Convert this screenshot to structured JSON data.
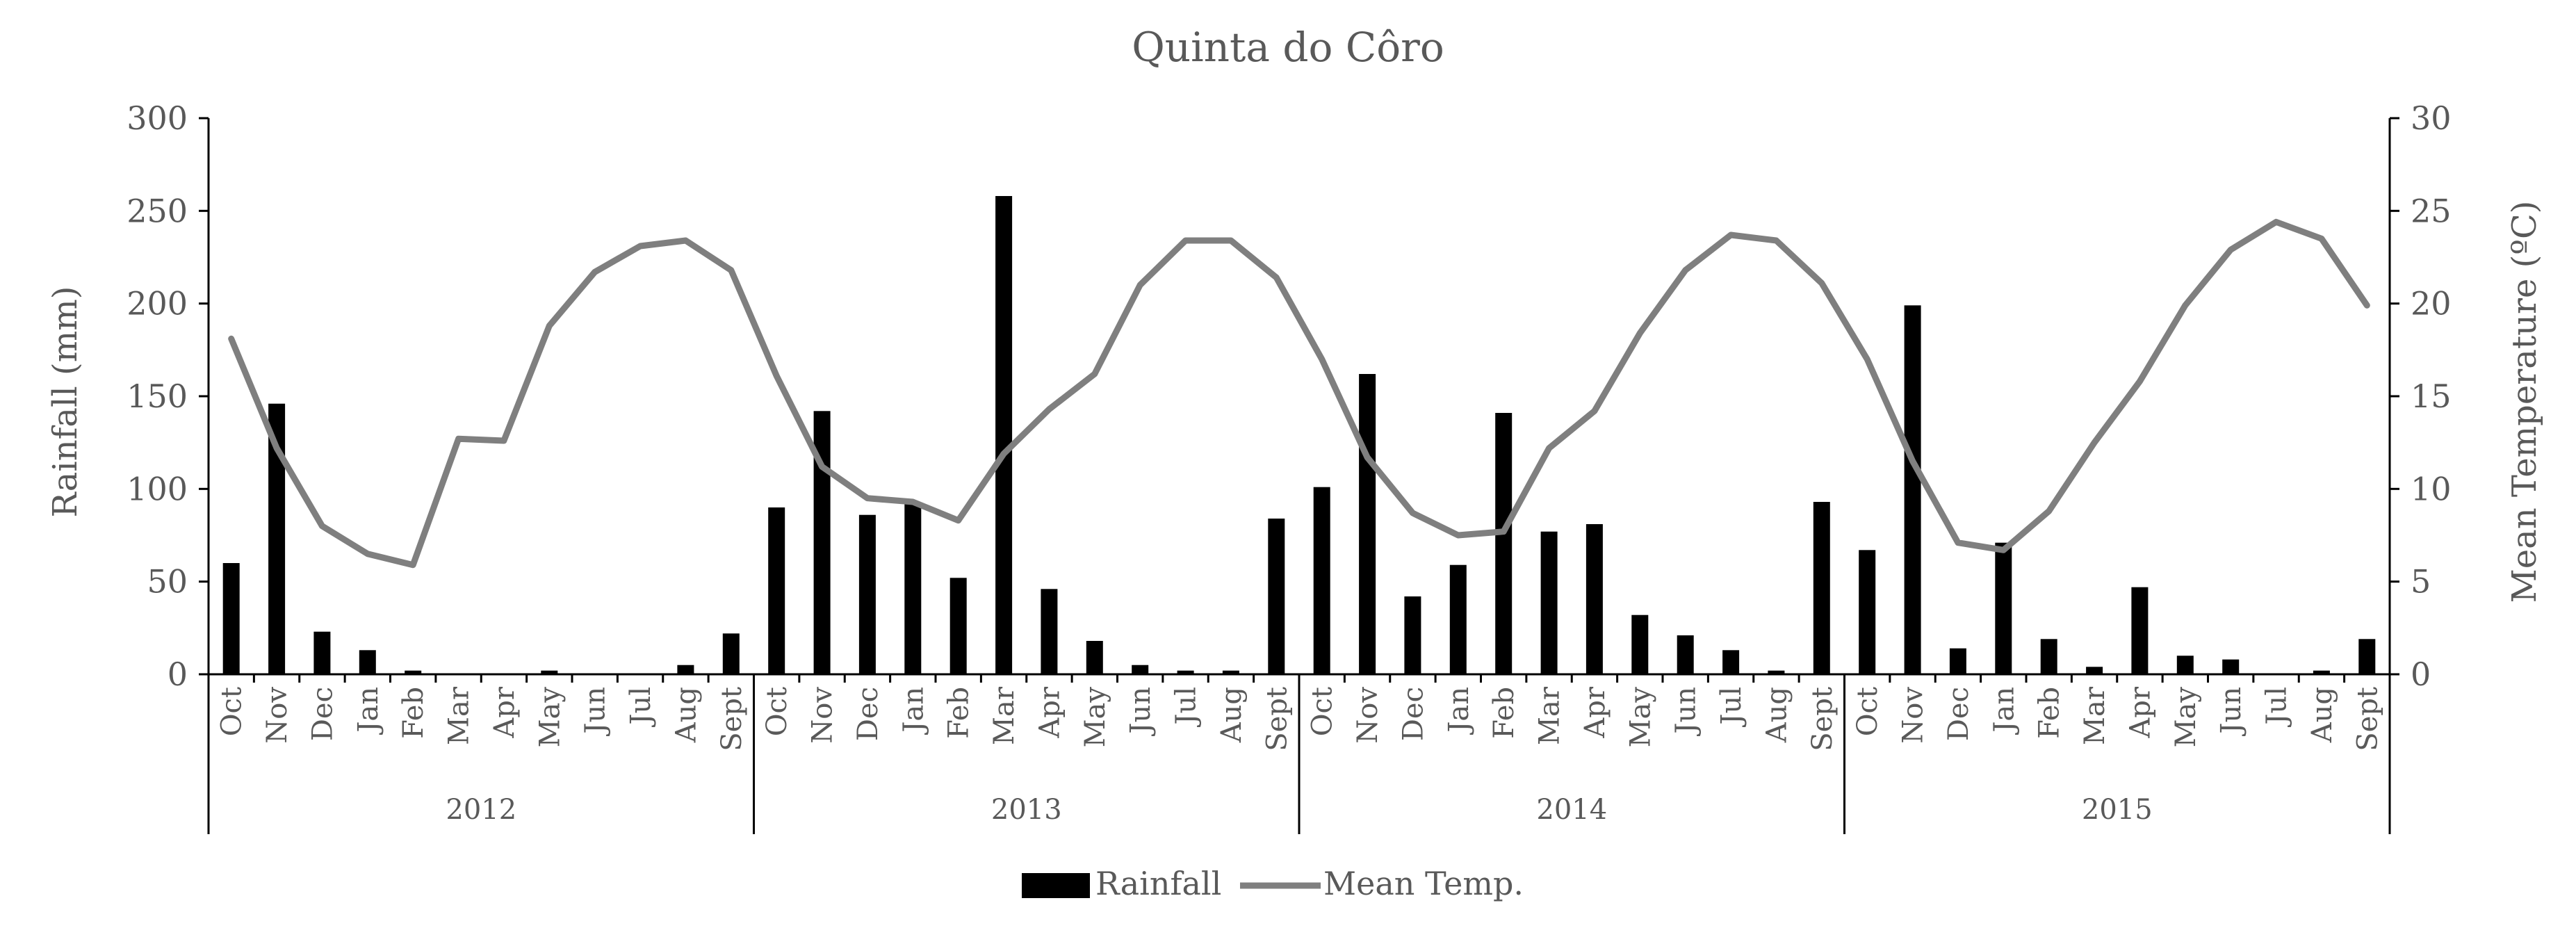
{
  "chart_data": {
    "type": "bar+line",
    "title": "Quinta do Côro",
    "ylabel_left": "Rainfall (mm)",
    "ylabel_right": "Mean Temperature (ºC)",
    "ylim_left": [
      0,
      300
    ],
    "yticks_left": [
      "300",
      "250",
      "200",
      "150",
      "100",
      "50",
      "0"
    ],
    "ylim_right": [
      0,
      30
    ],
    "yticks_right": [
      "30",
      "25",
      "20",
      "15",
      "10",
      "5",
      "0"
    ],
    "grid": false,
    "legend_position": "bottom",
    "months": [
      "Oct",
      "Nov",
      "Dec",
      "Jan",
      "Feb",
      "Mar",
      "Apr",
      "May",
      "Jun",
      "Jul",
      "Aug",
      "Sept"
    ],
    "years": [
      "2012",
      "2013",
      "2014",
      "2015"
    ],
    "series": [
      {
        "name": "Rainfall",
        "type": "bar",
        "color": "#000000",
        "axis": "left",
        "values": [
          60,
          146,
          23,
          13,
          2,
          0,
          0,
          2,
          0,
          0,
          5,
          22,
          90,
          142,
          86,
          92,
          52,
          258,
          46,
          18,
          5,
          2,
          2,
          84,
          101,
          162,
          42,
          59,
          141,
          77,
          81,
          32,
          21,
          13,
          2,
          93,
          67,
          199,
          14,
          71,
          19,
          4,
          47,
          10,
          8,
          0,
          2,
          19
        ]
      },
      {
        "name": "Mean Temp.",
        "type": "line",
        "color": "#7f7f7f",
        "axis": "right",
        "values": [
          18.1,
          12.2,
          8.0,
          6.5,
          5.9,
          12.7,
          12.6,
          18.8,
          21.7,
          23.1,
          23.4,
          21.8,
          16.1,
          11.2,
          9.5,
          9.3,
          8.3,
          11.9,
          14.3,
          16.2,
          21.0,
          23.4,
          23.4,
          21.4,
          17.0,
          11.7,
          8.7,
          7.5,
          7.7,
          12.2,
          14.2,
          18.4,
          21.8,
          23.7,
          23.4,
          21.1,
          17.0,
          11.5,
          7.1,
          6.7,
          8.8,
          12.5,
          15.8,
          19.9,
          22.9,
          24.4,
          23.5,
          19.9
        ]
      }
    ]
  }
}
